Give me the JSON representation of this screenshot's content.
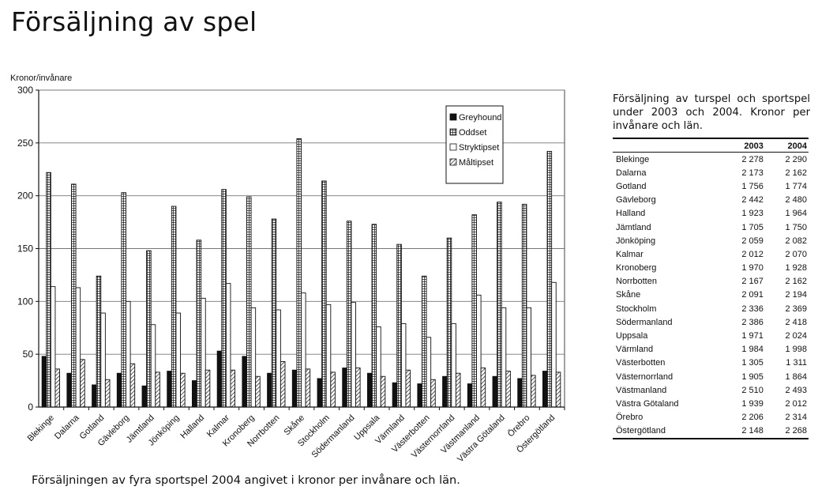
{
  "title": "Försäljning av spel",
  "caption": "Försäljningen av fyra sportspel 2004 angivet i kronor per invånare och län.",
  "colors": {
    "greyhound": "#111111",
    "oddset": "#d9d9d9",
    "stryktipset": "#ffffff",
    "maltipset": "#bdbdbd",
    "grid": "#777777",
    "plot_bg": "#ffffff"
  },
  "chart_data": {
    "type": "bar",
    "title": "",
    "xlabel": "",
    "ylabel": "Kronor/invånare",
    "ylim": [
      0,
      300
    ],
    "yticks": [
      0,
      50,
      100,
      150,
      200,
      250,
      300
    ],
    "grid": true,
    "legend_position": "top-right",
    "categories": [
      "Blekinge",
      "Dalarna",
      "Gotland",
      "Gävleborg",
      "Jämtland",
      "Jönköping",
      "Halland",
      "Kalmar",
      "Kronoberg",
      "Norrbotten",
      "Skåne",
      "Stockholm",
      "Södermanland",
      "Uppsala",
      "Värmland",
      "Västerbotten",
      "Västernorrland",
      "Västmanland",
      "Västra Götaland",
      "Örebro",
      "Östergötland"
    ],
    "series": [
      {
        "name": "Greyhound",
        "pattern": "solid",
        "values": [
          48,
          32,
          21,
          32,
          20,
          34,
          25,
          53,
          48,
          32,
          35,
          27,
          37,
          32,
          23,
          22,
          29,
          22,
          29,
          27,
          34
        ]
      },
      {
        "name": "Oddset",
        "pattern": "grid",
        "values": [
          222,
          211,
          124,
          203,
          148,
          190,
          158,
          206,
          199,
          178,
          254,
          214,
          176,
          173,
          154,
          124,
          160,
          182,
          194,
          192,
          242
        ]
      },
      {
        "name": "Stryktipset",
        "pattern": "open",
        "values": [
          114,
          113,
          89,
          100,
          78,
          89,
          103,
          117,
          94,
          92,
          108,
          97,
          99,
          76,
          79,
          66,
          79,
          106,
          94,
          94,
          118
        ]
      },
      {
        "name": "Måltipset",
        "pattern": "hatch",
        "values": [
          36,
          45,
          26,
          41,
          33,
          32,
          35,
          35,
          29,
          43,
          36,
          33,
          37,
          29,
          35,
          26,
          32,
          37,
          34,
          30,
          33
        ]
      }
    ]
  },
  "table": {
    "title": "Försäljning av turspel och sportspel under 2003 och 2004. Kronor per invånare och län.",
    "headers": [
      "",
      "2003",
      "2004"
    ],
    "rows": [
      [
        "Blekinge",
        "2 278",
        "2 290"
      ],
      [
        "Dalarna",
        "2 173",
        "2 162"
      ],
      [
        "Gotland",
        "1 756",
        "1 774"
      ],
      [
        "Gävleborg",
        "2 442",
        "2 480"
      ],
      [
        "Halland",
        "1 923",
        "1 964"
      ],
      [
        "Jämtland",
        "1 705",
        "1 750"
      ],
      [
        "Jönköping",
        "2 059",
        "2 082"
      ],
      [
        "Kalmar",
        "2 012",
        "2 070"
      ],
      [
        "Kronoberg",
        "1 970",
        "1 928"
      ],
      [
        "Norrbotten",
        "2 167",
        "2 162"
      ],
      [
        "Skåne",
        "2 091",
        "2 194"
      ],
      [
        "Stockholm",
        "2 336",
        "2 369"
      ],
      [
        "Södermanland",
        "2 386",
        "2 418"
      ],
      [
        "Uppsala",
        "1 971",
        "2 024"
      ],
      [
        "Värmland",
        "1 984",
        "1 998"
      ],
      [
        "Västerbotten",
        "1 305",
        "1 311"
      ],
      [
        "Västernorrland",
        "1 905",
        "1 864"
      ],
      [
        "Västmanland",
        "2 510",
        "2 493"
      ],
      [
        "Västra Götaland",
        "1 939",
        "2 012"
      ],
      [
        "Örebro",
        "2 206",
        "2 314"
      ],
      [
        "Östergötland",
        "2 148",
        "2 268"
      ]
    ]
  }
}
